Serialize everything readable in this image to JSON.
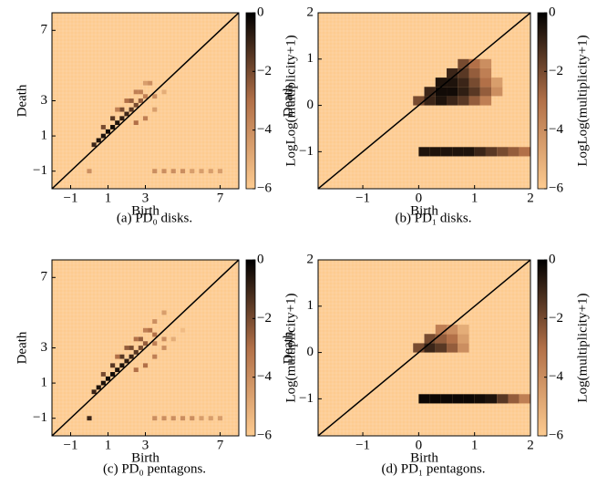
{
  "chart_data": [
    {
      "type": "heatmap",
      "caption": "(a) PD₀ disks.",
      "xlabel": "Birth",
      "ylabel": "Death",
      "colorbar_label": "LogLog(multiplicity+1)",
      "xlim": [
        -2,
        8
      ],
      "ylim": [
        -2,
        8
      ],
      "xticks": [
        {
          "value": -1,
          "label": "−1"
        },
        1,
        3,
        7
      ],
      "yticks": [
        {
          "value": -1,
          "label": "−1"
        },
        1,
        3,
        7
      ],
      "clim": [
        -6,
        0
      ],
      "cticks": [
        0,
        {
          "value": -2,
          "label": "−2"
        },
        {
          "value": -4,
          "label": "−4"
        },
        {
          "value": -6,
          "label": "−6"
        }
      ],
      "colormap": [
        "#fdcb90",
        "#b27048",
        "#000000"
      ],
      "bin": 0.25,
      "cells": [
        [
          0.25,
          0.5,
          -1
        ],
        [
          0.5,
          0.75,
          -0.5
        ],
        [
          0.75,
          1,
          -0.5
        ],
        [
          1,
          1.25,
          -0.3
        ],
        [
          1.25,
          1.5,
          -0.3
        ],
        [
          1.5,
          1.75,
          -0.5
        ],
        [
          1.75,
          2,
          -0.8
        ],
        [
          2,
          2.25,
          -1
        ],
        [
          2.25,
          2.5,
          -1.5
        ],
        [
          2.5,
          2.75,
          -2
        ],
        [
          2.75,
          3,
          -2.5
        ],
        [
          3,
          3.25,
          -3.5
        ],
        [
          0.75,
          1.5,
          -2
        ],
        [
          1.25,
          2,
          -1.5
        ],
        [
          1.75,
          2.5,
          -2
        ],
        [
          2.25,
          3,
          -2.5
        ],
        [
          2.75,
          3.5,
          -3.5
        ],
        [
          3.25,
          4,
          -4
        ],
        [
          1.5,
          2.5,
          -3.5
        ],
        [
          2,
          3,
          -3
        ],
        [
          2.5,
          3.5,
          -3.5
        ],
        [
          3,
          4,
          -4.5
        ],
        [
          3,
          2,
          -3.5
        ],
        [
          2.5,
          1.75,
          -3
        ],
        [
          3.5,
          2.5,
          -4.5
        ],
        [
          3.5,
          3.25,
          -4
        ],
        [
          4,
          3.5,
          -5
        ],
        [
          0,
          -1,
          -4
        ],
        [
          3.5,
          -1,
          -4
        ],
        [
          4,
          -1,
          -4
        ],
        [
          4.5,
          -1,
          -4
        ],
        [
          5,
          -1,
          -4
        ],
        [
          5.5,
          -1,
          -4.5
        ],
        [
          6,
          -1,
          -4.5
        ],
        [
          6.5,
          -1,
          -4.5
        ],
        [
          7,
          -1,
          -4.5
        ]
      ]
    },
    {
      "type": "heatmap",
      "caption": "(b) PD₁ disks.",
      "xlabel": "Birth",
      "ylabel": "Death",
      "colorbar_label": "LogLog(multiplicity+1)",
      "xlim": [
        -1.8,
        2
      ],
      "ylim": [
        -1.8,
        2
      ],
      "xticks": [
        {
          "value": -1,
          "label": "−1"
        },
        0,
        1,
        2
      ],
      "yticks": [
        {
          "value": -1,
          "label": "−1"
        },
        0,
        1,
        2
      ],
      "clim": [
        -6,
        0
      ],
      "cticks": [
        0,
        {
          "value": -2,
          "label": "−2"
        },
        {
          "value": -4,
          "label": "−4"
        },
        {
          "value": -6,
          "label": "−6"
        }
      ],
      "colormap": [
        "#fdcb90",
        "#b27048",
        "#000000"
      ],
      "bin": 0.2,
      "cells": [
        [
          0,
          0.1,
          -2
        ],
        [
          0.2,
          0.1,
          -1
        ],
        [
          0.4,
          0.1,
          -0.5
        ],
        [
          0.6,
          0.1,
          -1
        ],
        [
          0.8,
          0.1,
          -1.5
        ],
        [
          1,
          0.1,
          -2.5
        ],
        [
          1.2,
          0.1,
          -3.5
        ],
        [
          0.2,
          0.3,
          -1
        ],
        [
          0.4,
          0.3,
          -0.3
        ],
        [
          0.6,
          0.3,
          -0.3
        ],
        [
          0.8,
          0.3,
          -0.8
        ],
        [
          1,
          0.3,
          -1.5
        ],
        [
          1.2,
          0.3,
          -2.5
        ],
        [
          1.4,
          0.3,
          -4
        ],
        [
          0.4,
          0.5,
          -0.5
        ],
        [
          0.6,
          0.5,
          -0.5
        ],
        [
          0.8,
          0.5,
          -1
        ],
        [
          1,
          0.5,
          -2
        ],
        [
          1.2,
          0.5,
          -3
        ],
        [
          1.4,
          0.5,
          -4.5
        ],
        [
          0.6,
          0.7,
          -1
        ],
        [
          0.8,
          0.7,
          -1.5
        ],
        [
          1,
          0.7,
          -2.5
        ],
        [
          1.2,
          0.7,
          -3.5
        ],
        [
          0.8,
          0.9,
          -2
        ],
        [
          1,
          0.9,
          -3
        ],
        [
          1.2,
          0.9,
          -4
        ],
        [
          0.1,
          -1,
          -0.5
        ],
        [
          0.3,
          -1,
          -0.5
        ],
        [
          0.5,
          -1,
          -0.5
        ],
        [
          0.7,
          -1,
          -0.5
        ],
        [
          0.9,
          -1,
          -0.5
        ],
        [
          1.1,
          -1,
          -1
        ],
        [
          1.3,
          -1,
          -1.5
        ],
        [
          1.5,
          -1,
          -2
        ],
        [
          1.7,
          -1,
          -2.5
        ],
        [
          1.9,
          -1,
          -3
        ]
      ]
    },
    {
      "type": "heatmap",
      "caption": "(c) PD₀ pentagons.",
      "xlabel": "Birth",
      "ylabel": "Death",
      "colorbar_label": "Log(multiplicity+1)",
      "xlim": [
        -2,
        8
      ],
      "ylim": [
        -2,
        8
      ],
      "xticks": [
        {
          "value": -1,
          "label": "−1"
        },
        1,
        3,
        7
      ],
      "yticks": [
        {
          "value": -1,
          "label": "−1"
        },
        1,
        3,
        7
      ],
      "clim": [
        -6,
        0
      ],
      "cticks": [
        0,
        {
          "value": -2,
          "label": "−2"
        },
        {
          "value": -4,
          "label": "−4"
        },
        {
          "value": -6,
          "label": "−6"
        }
      ],
      "colormap": [
        "#fdcb90",
        "#b27048",
        "#000000"
      ],
      "bin": 0.25,
      "cells": [
        [
          0.25,
          0.5,
          -1
        ],
        [
          0.5,
          0.75,
          -0.5
        ],
        [
          0.75,
          1,
          -0.5
        ],
        [
          1,
          1.25,
          -0.3
        ],
        [
          1.25,
          1.5,
          -0.3
        ],
        [
          1.5,
          1.75,
          -0.5
        ],
        [
          1.75,
          2,
          -0.5
        ],
        [
          2,
          2.25,
          -0.8
        ],
        [
          2.25,
          2.5,
          -1
        ],
        [
          2.5,
          2.75,
          -1.5
        ],
        [
          2.75,
          3,
          -2
        ],
        [
          3,
          3.25,
          -2.5
        ],
        [
          3.5,
          3.75,
          -3
        ],
        [
          0.75,
          1.5,
          -2
        ],
        [
          1.25,
          2,
          -1.5
        ],
        [
          1.75,
          2.5,
          -1.5
        ],
        [
          2.25,
          3,
          -2
        ],
        [
          2.75,
          3.5,
          -2.5
        ],
        [
          3.25,
          4,
          -3
        ],
        [
          3.5,
          4.5,
          -4
        ],
        [
          4,
          5,
          -4.5
        ],
        [
          1.5,
          2.5,
          -3
        ],
        [
          2,
          3,
          -2.5
        ],
        [
          2.5,
          3.5,
          -3
        ],
        [
          3,
          4,
          -3.5
        ],
        [
          3,
          2,
          -3
        ],
        [
          2.5,
          1.75,
          -3
        ],
        [
          3.5,
          2.5,
          -3.5
        ],
        [
          3.5,
          3.25,
          -3.5
        ],
        [
          4,
          3.5,
          -4
        ],
        [
          4,
          3,
          -4
        ],
        [
          4.5,
          3.5,
          -5
        ],
        [
          5,
          4,
          -5.5
        ],
        [
          0,
          -1,
          -1
        ],
        [
          3.5,
          -1,
          -4
        ],
        [
          4,
          -1,
          -4
        ],
        [
          4.5,
          -1,
          -4
        ],
        [
          5,
          -1,
          -4
        ],
        [
          5.5,
          -1,
          -4
        ],
        [
          6,
          -1,
          -4.5
        ],
        [
          6.5,
          -1,
          -4.5
        ],
        [
          7,
          -1,
          -4.5
        ]
      ]
    },
    {
      "type": "heatmap",
      "caption": "(d) PD₁ pentagons.",
      "xlabel": "Birth",
      "ylabel": "Death",
      "colorbar_label": "Log(multiplicity+1)",
      "xlim": [
        -1.8,
        2
      ],
      "ylim": [
        -1.8,
        2
      ],
      "xticks": [
        {
          "value": -1,
          "label": "−1"
        },
        0,
        1,
        2
      ],
      "yticks": [
        {
          "value": -1,
          "label": "−1"
        },
        0,
        1,
        2
      ],
      "clim": [
        -6,
        0
      ],
      "cticks": [
        0,
        {
          "value": -2,
          "label": "−2"
        },
        {
          "value": -4,
          "label": "−4"
        },
        {
          "value": -6,
          "label": "−6"
        }
      ],
      "colormap": [
        "#fdcb90",
        "#b27048",
        "#000000"
      ],
      "bin": 0.2,
      "cells": [
        [
          0,
          0.1,
          -2
        ],
        [
          0.2,
          0.1,
          -1
        ],
        [
          0.4,
          0.1,
          -1.5
        ],
        [
          0.6,
          0.1,
          -2.5
        ],
        [
          0.8,
          0.1,
          -4
        ],
        [
          0.2,
          0.3,
          -2
        ],
        [
          0.4,
          0.3,
          -2.5
        ],
        [
          0.6,
          0.3,
          -3
        ],
        [
          0.8,
          0.3,
          -4.5
        ],
        [
          0.4,
          0.5,
          -3.5
        ],
        [
          0.6,
          0.5,
          -4
        ],
        [
          0.8,
          0.5,
          -5
        ],
        [
          0.1,
          -1,
          -0.2
        ],
        [
          0.3,
          -1,
          -0.2
        ],
        [
          0.5,
          -1,
          -0.2
        ],
        [
          0.7,
          -1,
          -0.2
        ],
        [
          0.9,
          -1,
          -0.2
        ],
        [
          1.1,
          -1,
          -0.3
        ],
        [
          1.3,
          -1,
          -0.5
        ],
        [
          1.5,
          -1,
          -1.5
        ],
        [
          1.7,
          -1,
          -2.5
        ],
        [
          1.9,
          -1,
          -3.5
        ]
      ]
    }
  ]
}
